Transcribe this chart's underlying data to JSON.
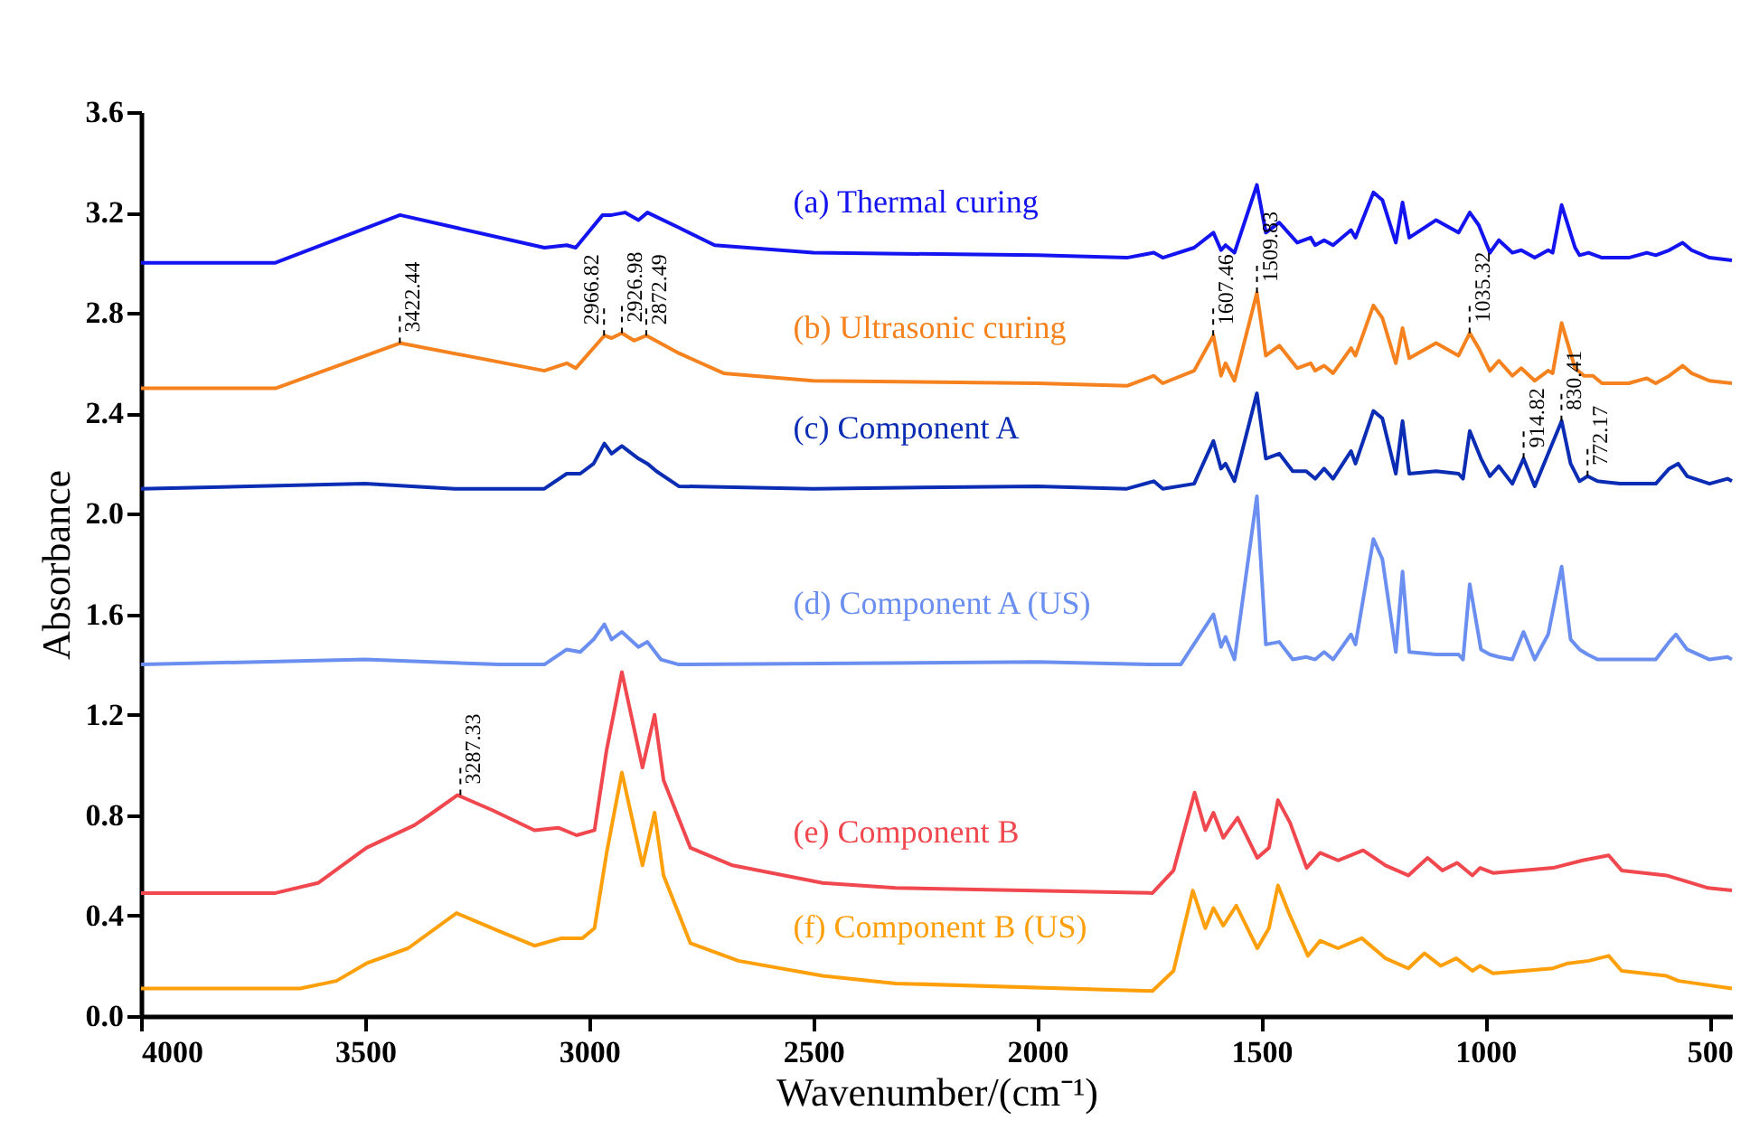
{
  "chart_data": {
    "type": "line",
    "xlabel": "Wavenumber/(cm⁻¹)",
    "ylabel": "Absorbance",
    "xlim": [
      4000,
      450
    ],
    "xticks": [
      4000,
      3500,
      3000,
      2500,
      2000,
      1500,
      1000,
      500
    ],
    "ylim": [
      0,
      3.6
    ],
    "yticks": [
      {
        "value": 0,
        "label": "0.0"
      },
      0.4,
      0.8,
      1.2,
      1.6,
      {
        "value": 2,
        "label": "2.0"
      },
      2.4,
      2.8,
      3.2,
      3.6
    ],
    "series": [
      {
        "name": "(a) Thermal curing",
        "color": "#1414f0",
        "x": [
          4000,
          3700,
          3422,
          3100,
          3050,
          3030,
          2970,
          2950,
          2920,
          2890,
          2870,
          2800,
          2720,
          2500,
          2000,
          1800,
          1740,
          1720,
          1650,
          1607,
          1590,
          1580,
          1560,
          1510,
          1490,
          1460,
          1420,
          1390,
          1380,
          1360,
          1340,
          1300,
          1290,
          1250,
          1230,
          1200,
          1185,
          1170,
          1110,
          1060,
          1035,
          1015,
          990,
          970,
          940,
          920,
          890,
          860,
          850,
          830,
          800,
          790,
          770,
          740,
          680,
          640,
          620,
          590,
          560,
          540,
          500,
          450
        ],
        "values": [
          3.0,
          3.0,
          3.19,
          3.06,
          3.07,
          3.06,
          3.19,
          3.19,
          3.2,
          3.17,
          3.2,
          3.14,
          3.07,
          3.04,
          3.03,
          3.02,
          3.04,
          3.02,
          3.06,
          3.12,
          3.05,
          3.07,
          3.04,
          3.31,
          3.12,
          3.16,
          3.08,
          3.1,
          3.07,
          3.09,
          3.07,
          3.13,
          3.1,
          3.28,
          3.25,
          3.08,
          3.24,
          3.1,
          3.17,
          3.12,
          3.2,
          3.15,
          3.04,
          3.09,
          3.04,
          3.05,
          3.02,
          3.05,
          3.04,
          3.23,
          3.06,
          3.03,
          3.04,
          3.02,
          3.02,
          3.04,
          3.03,
          3.05,
          3.08,
          3.05,
          3.02,
          3.01
        ]
      },
      {
        "name": "(b) Ultrasonic curing",
        "color": "#f5821e",
        "x": [
          4000,
          3700,
          3422,
          3100,
          3050,
          3030,
          2966,
          2950,
          2927,
          2900,
          2872,
          2800,
          2700,
          2500,
          2000,
          1800,
          1740,
          1720,
          1650,
          1607,
          1590,
          1580,
          1560,
          1510,
          1490,
          1460,
          1420,
          1390,
          1380,
          1360,
          1340,
          1300,
          1290,
          1250,
          1230,
          1200,
          1185,
          1170,
          1110,
          1060,
          1035,
          1015,
          990,
          970,
          940,
          920,
          890,
          860,
          850,
          830,
          800,
          780,
          760,
          740,
          680,
          640,
          620,
          590,
          560,
          540,
          500,
          450
        ],
        "values": [
          2.5,
          2.5,
          2.68,
          2.57,
          2.6,
          2.58,
          2.71,
          2.7,
          2.72,
          2.69,
          2.71,
          2.64,
          2.56,
          2.53,
          2.52,
          2.51,
          2.55,
          2.52,
          2.57,
          2.71,
          2.55,
          2.6,
          2.53,
          2.88,
          2.63,
          2.67,
          2.58,
          2.6,
          2.57,
          2.59,
          2.56,
          2.66,
          2.63,
          2.83,
          2.78,
          2.6,
          2.74,
          2.62,
          2.68,
          2.63,
          2.72,
          2.66,
          2.57,
          2.61,
          2.55,
          2.58,
          2.53,
          2.57,
          2.56,
          2.76,
          2.58,
          2.55,
          2.55,
          2.52,
          2.52,
          2.54,
          2.52,
          2.55,
          2.59,
          2.56,
          2.53,
          2.52
        ]
      },
      {
        "name": "(c) Component A",
        "color": "#0a2db4",
        "x": [
          4000,
          3500,
          3300,
          3100,
          3050,
          3020,
          2990,
          2966,
          2950,
          2927,
          2890,
          2870,
          2850,
          2800,
          2500,
          2000,
          1800,
          1740,
          1720,
          1650,
          1607,
          1590,
          1580,
          1560,
          1510,
          1490,
          1460,
          1430,
          1400,
          1380,
          1360,
          1340,
          1300,
          1290,
          1250,
          1230,
          1200,
          1185,
          1170,
          1110,
          1060,
          1050,
          1035,
          1010,
          990,
          970,
          940,
          915,
          890,
          860,
          830,
          810,
          790,
          772,
          750,
          700,
          620,
          590,
          570,
          550,
          500,
          460,
          450
        ],
        "values": [
          2.1,
          2.12,
          2.1,
          2.1,
          2.16,
          2.16,
          2.2,
          2.28,
          2.24,
          2.27,
          2.22,
          2.2,
          2.17,
          2.11,
          2.1,
          2.11,
          2.1,
          2.13,
          2.1,
          2.12,
          2.29,
          2.18,
          2.2,
          2.13,
          2.48,
          2.22,
          2.24,
          2.17,
          2.17,
          2.14,
          2.18,
          2.14,
          2.25,
          2.2,
          2.41,
          2.38,
          2.16,
          2.37,
          2.16,
          2.17,
          2.16,
          2.14,
          2.33,
          2.22,
          2.15,
          2.19,
          2.12,
          2.22,
          2.11,
          2.24,
          2.37,
          2.2,
          2.13,
          2.15,
          2.13,
          2.12,
          2.12,
          2.18,
          2.2,
          2.15,
          2.12,
          2.14,
          2.13
        ]
      },
      {
        "name": "(d) Component A (US)",
        "color": "#6b8ff0",
        "x": [
          4000,
          3500,
          3200,
          3100,
          3050,
          3020,
          2990,
          2966,
          2950,
          2927,
          2890,
          2870,
          2840,
          2800,
          2000,
          1750,
          1680,
          1607,
          1590,
          1580,
          1560,
          1510,
          1490,
          1460,
          1430,
          1400,
          1380,
          1360,
          1340,
          1300,
          1290,
          1250,
          1230,
          1200,
          1185,
          1170,
          1110,
          1060,
          1050,
          1035,
          1010,
          990,
          970,
          940,
          915,
          890,
          860,
          830,
          810,
          790,
          772,
          750,
          620,
          590,
          575,
          550,
          500,
          460,
          450
        ],
        "values": [
          1.4,
          1.42,
          1.4,
          1.4,
          1.46,
          1.45,
          1.5,
          1.56,
          1.5,
          1.53,
          1.47,
          1.49,
          1.42,
          1.4,
          1.41,
          1.4,
          1.4,
          1.6,
          1.47,
          1.51,
          1.42,
          2.07,
          1.48,
          1.49,
          1.42,
          1.43,
          1.42,
          1.45,
          1.42,
          1.52,
          1.48,
          1.9,
          1.82,
          1.45,
          1.77,
          1.45,
          1.44,
          1.44,
          1.42,
          1.72,
          1.46,
          1.44,
          1.43,
          1.42,
          1.53,
          1.42,
          1.52,
          1.79,
          1.5,
          1.46,
          1.44,
          1.42,
          1.42,
          1.49,
          1.52,
          1.46,
          1.42,
          1.43,
          1.42
        ]
      },
      {
        "name": "(e) Component B",
        "color": "#f0484e",
        "x": [
          4000,
          3700,
          3605,
          3497,
          3390,
          3357,
          3294,
          3216,
          3122,
          3069,
          3028,
          2988,
          2961,
          2927,
          2881,
          2854,
          2834,
          2774,
          2680,
          2479,
          2316,
          1743,
          1696,
          1649,
          1625,
          1607,
          1585,
          1553,
          1509,
          1483,
          1463,
          1436,
          1399,
          1369,
          1329,
          1273,
          1223,
          1172,
          1129,
          1096,
          1063,
          1029,
          1012,
          983,
          849,
          783,
          725,
          696,
          596,
          503,
          450
        ],
        "values": [
          0.49,
          0.49,
          0.53,
          0.67,
          0.76,
          0.8,
          0.88,
          0.82,
          0.74,
          0.75,
          0.72,
          0.74,
          1.06,
          1.37,
          0.99,
          1.2,
          0.94,
          0.67,
          0.6,
          0.53,
          0.51,
          0.49,
          0.58,
          0.89,
          0.74,
          0.81,
          0.71,
          0.79,
          0.63,
          0.67,
          0.86,
          0.77,
          0.59,
          0.65,
          0.62,
          0.66,
          0.6,
          0.56,
          0.63,
          0.58,
          0.61,
          0.56,
          0.59,
          0.57,
          0.59,
          0.62,
          0.64,
          0.58,
          0.56,
          0.51,
          0.5
        ]
      },
      {
        "name": "(f) Component B (US)",
        "color": "#ff9f0a",
        "x": [
          4000,
          3645,
          3564,
          3497,
          3404,
          3296,
          3203,
          3122,
          3062,
          3015,
          2988,
          2961,
          2927,
          2881,
          2854,
          2834,
          2774,
          2667,
          2479,
          2316,
          1743,
          1696,
          1653,
          1625,
          1607,
          1585,
          1556,
          1509,
          1483,
          1463,
          1436,
          1396,
          1369,
          1329,
          1276,
          1223,
          1172,
          1136,
          1100,
          1065,
          1029,
          1012,
          983,
          849,
          816,
          769,
          725,
          696,
          596,
          569,
          450
        ],
        "values": [
          0.11,
          0.11,
          0.14,
          0.21,
          0.27,
          0.41,
          0.34,
          0.28,
          0.31,
          0.31,
          0.35,
          0.65,
          0.97,
          0.6,
          0.81,
          0.56,
          0.29,
          0.22,
          0.16,
          0.13,
          0.1,
          0.18,
          0.5,
          0.35,
          0.43,
          0.36,
          0.44,
          0.27,
          0.35,
          0.52,
          0.4,
          0.24,
          0.3,
          0.27,
          0.31,
          0.23,
          0.19,
          0.25,
          0.2,
          0.23,
          0.18,
          0.2,
          0.17,
          0.19,
          0.21,
          0.22,
          0.24,
          0.18,
          0.16,
          0.14,
          0.11
        ]
      }
    ],
    "annotations": [
      {
        "text": "3422.44",
        "x": 3422.44,
        "y": 2.68
      },
      {
        "text": "2966.82",
        "x": 2966.82,
        "y": 2.71
      },
      {
        "text": "2926.98",
        "x": 2926.98,
        "y": 2.72
      },
      {
        "text": "2872.49",
        "x": 2872.49,
        "y": 2.71
      },
      {
        "text": "1607.46",
        "x": 1607.46,
        "y": 2.71
      },
      {
        "text": "1509.83",
        "x": 1509.83,
        "y": 2.88
      },
      {
        "text": "1035.32",
        "x": 1035.32,
        "y": 2.72
      },
      {
        "text": "914.82",
        "x": 914.82,
        "y": 2.22
      },
      {
        "text": "830.41",
        "x": 830.41,
        "y": 2.37
      },
      {
        "text": "772.17",
        "x": 772.17,
        "y": 2.15
      },
      {
        "text": "3287.33",
        "x": 3287.33,
        "y": 0.88
      }
    ]
  }
}
